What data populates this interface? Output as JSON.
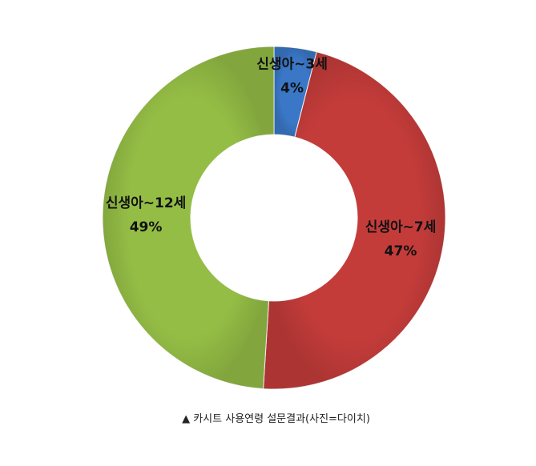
{
  "chart_data": {
    "type": "pie",
    "variant": "donut",
    "title": "",
    "slices": [
      {
        "label": "신생아~3세",
        "value": 4,
        "value_label": "4%",
        "color": "#3a77c6"
      },
      {
        "label": "신생아~7세",
        "value": 47,
        "value_label": "47%",
        "color": "#c43c3a"
      },
      {
        "label": "신생아~12세",
        "value": 49,
        "value_label": "49%",
        "color": "#94bd45"
      }
    ],
    "start_angle_deg": 0,
    "direction": "clockwise",
    "legend": "none"
  },
  "caption": "▲ 카시트 사용연령 설문결과(사진=다이치)"
}
